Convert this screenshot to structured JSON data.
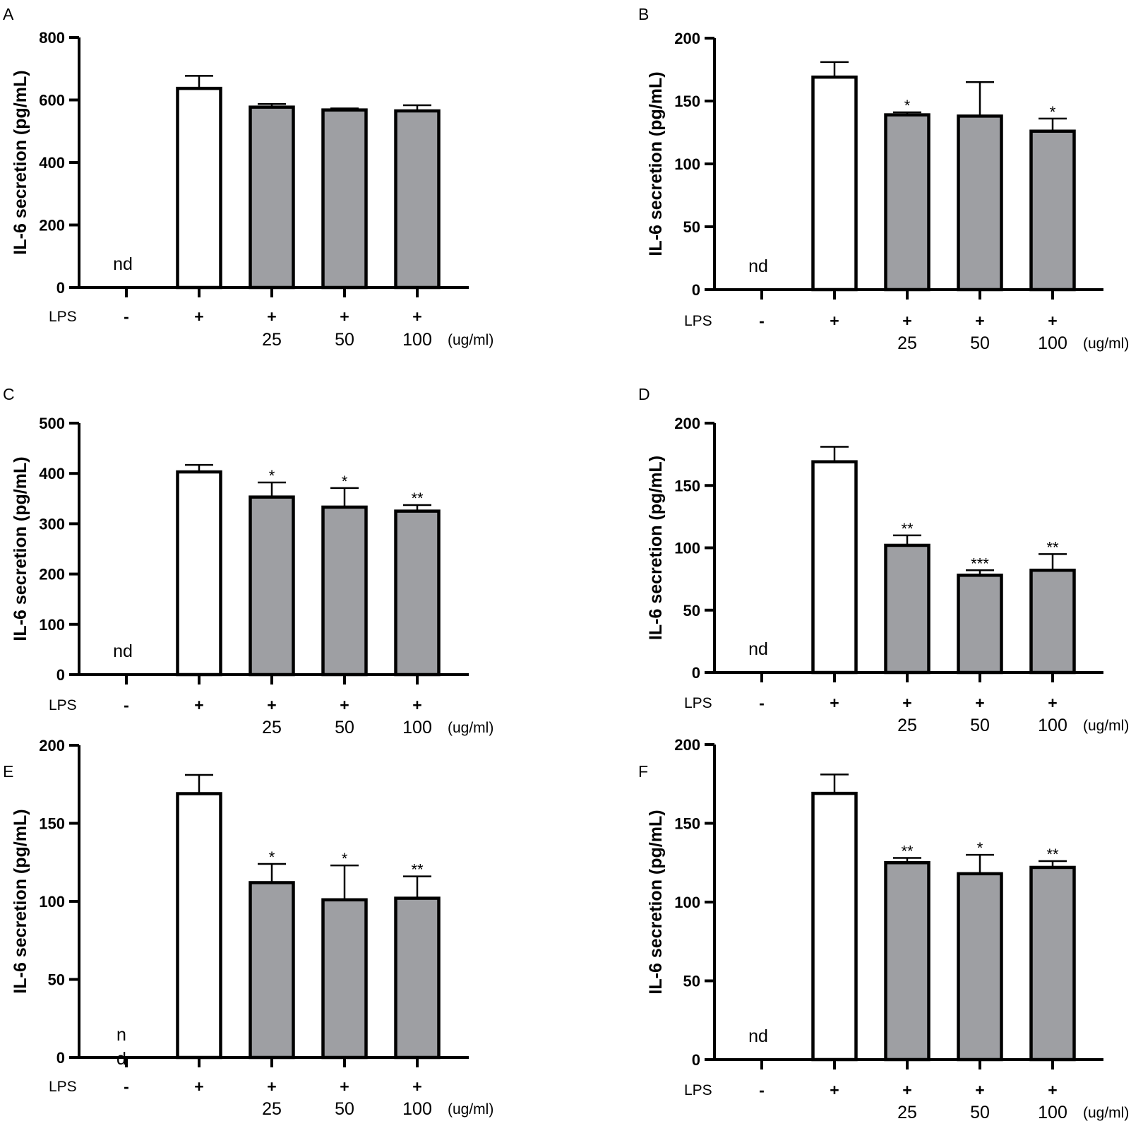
{
  "chart_data": [
    {
      "panel": "A",
      "type": "bar",
      "ylabel": "IL-6 secretion (pg/mL)",
      "ylim": [
        0,
        800
      ],
      "yticks": [
        "0",
        "200",
        "400",
        "600",
        "800"
      ],
      "categories": [
        "1",
        "2",
        "3",
        "4",
        "5"
      ],
      "values": [
        0,
        637,
        577,
        568,
        565
      ],
      "errors": [
        0,
        40,
        10,
        5,
        18
      ],
      "fill": [
        "none",
        "#ffffff",
        "#9e9fa3",
        "#9e9fa3",
        "#9e9fa3"
      ],
      "significance": [
        "",
        "",
        "",
        "",
        ""
      ],
      "nd_label": "nd",
      "lps_label": "LPS",
      "lps": [
        "-",
        "+",
        "+",
        "+",
        "+"
      ],
      "concentrations": [
        "",
        "",
        "25",
        "50",
        "100"
      ],
      "unit": "(ug/ml)"
    },
    {
      "panel": "B",
      "type": "bar",
      "ylabel": "IL-6 secretion (pg/mL)",
      "ylim": [
        0,
        200
      ],
      "yticks": [
        "0",
        "50",
        "100",
        "150",
        "200"
      ],
      "categories": [
        "1",
        "2",
        "3",
        "4",
        "5"
      ],
      "values": [
        0,
        169,
        139,
        138,
        126
      ],
      "errors": [
        0,
        12,
        2,
        27,
        10
      ],
      "fill": [
        "none",
        "#ffffff",
        "#9e9fa3",
        "#9e9fa3",
        "#9e9fa3"
      ],
      "significance": [
        "",
        "",
        "*",
        "",
        "*"
      ],
      "nd_label": "nd",
      "lps_label": "LPS",
      "lps": [
        "-",
        "+",
        "+",
        "+",
        "+"
      ],
      "concentrations": [
        "",
        "",
        "25",
        "50",
        "100"
      ],
      "unit": "(ug/ml)"
    },
    {
      "panel": "C",
      "type": "bar",
      "ylabel": "IL-6 secretion (pg/mL)",
      "ylim": [
        0,
        500
      ],
      "yticks": [
        "0",
        "100",
        "200",
        "300",
        "400",
        "500"
      ],
      "categories": [
        "1",
        "2",
        "3",
        "4",
        "5"
      ],
      "values": [
        0,
        403,
        353,
        333,
        325
      ],
      "errors": [
        0,
        14,
        29,
        38,
        12
      ],
      "fill": [
        "none",
        "#ffffff",
        "#9e9fa3",
        "#9e9fa3",
        "#9e9fa3"
      ],
      "significance": [
        "",
        "",
        "*",
        "*",
        "**"
      ],
      "nd_label": "nd",
      "lps_label": "LPS",
      "lps": [
        "-",
        "+",
        "+",
        "+",
        "+"
      ],
      "concentrations": [
        "",
        "",
        "25",
        "50",
        "100"
      ],
      "unit": "(ug/ml)"
    },
    {
      "panel": "D",
      "type": "bar",
      "ylabel": "IL-6 secretion (pg/mL)",
      "ylim": [
        0,
        200
      ],
      "yticks": [
        "0",
        "50",
        "100",
        "150",
        "200"
      ],
      "categories": [
        "1",
        "2",
        "3",
        "4",
        "5"
      ],
      "values": [
        0,
        169,
        102,
        78,
        82
      ],
      "errors": [
        0,
        12,
        8,
        4,
        13
      ],
      "fill": [
        "none",
        "#ffffff",
        "#9e9fa3",
        "#9e9fa3",
        "#9e9fa3"
      ],
      "significance": [
        "",
        "",
        "**",
        "***",
        "**"
      ],
      "nd_label": "nd",
      "lps_label": "LPS",
      "lps": [
        "-",
        "+",
        "+",
        "+",
        "+"
      ],
      "concentrations": [
        "",
        "",
        "25",
        "50",
        "100"
      ],
      "unit": "(ug/ml)"
    },
    {
      "panel": "E",
      "type": "bar",
      "ylabel": "IL-6 secretion (pg/mL)",
      "ylim": [
        0,
        200
      ],
      "yticks": [
        "0",
        "50",
        "100",
        "150",
        "200"
      ],
      "categories": [
        "1",
        "2",
        "3",
        "4",
        "5"
      ],
      "values": [
        0,
        169,
        112,
        101,
        102
      ],
      "errors": [
        0,
        12,
        12,
        22,
        14
      ],
      "fill": [
        "none",
        "#ffffff",
        "#9e9fa3",
        "#9e9fa3",
        "#9e9fa3"
      ],
      "significance": [
        "",
        "",
        "*",
        "*",
        "**"
      ],
      "nd_label": "n\nd",
      "lps_label": "LPS",
      "lps": [
        "-",
        "+",
        "+",
        "+",
        "+"
      ],
      "concentrations": [
        "",
        "",
        "25",
        "50",
        "100"
      ],
      "unit": "(ug/ml)"
    },
    {
      "panel": "F",
      "type": "bar",
      "ylabel": "IL-6 secretion (pg/mL)",
      "ylim": [
        0,
        200
      ],
      "yticks": [
        "0",
        "50",
        "100",
        "150",
        "200"
      ],
      "categories": [
        "1",
        "2",
        "3",
        "4",
        "5"
      ],
      "values": [
        0,
        169,
        125,
        118,
        122
      ],
      "errors": [
        0,
        12,
        3,
        12,
        4
      ],
      "fill": [
        "none",
        "#ffffff",
        "#9e9fa3",
        "#9e9fa3",
        "#9e9fa3"
      ],
      "significance": [
        "",
        "",
        "**",
        "*",
        "**"
      ],
      "nd_label": "nd",
      "lps_label": "LPS",
      "lps": [
        "-",
        "+",
        "+",
        "+",
        "+"
      ],
      "concentrations": [
        "",
        "",
        "25",
        "50",
        "100"
      ],
      "unit": "(ug/ml)"
    }
  ]
}
